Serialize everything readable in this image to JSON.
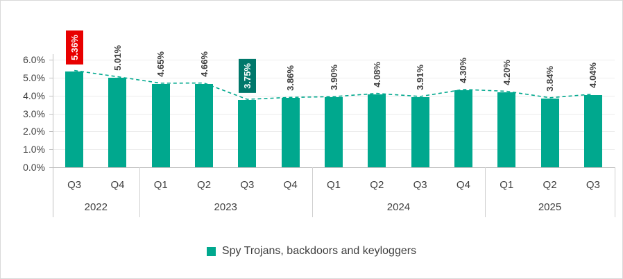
{
  "chart_data": {
    "type": "bar",
    "title": "",
    "legend": "Spy Trojans, backdoors and keyloggers",
    "xlabel": "",
    "ylabel": "",
    "ylim": [
      0,
      6
    ],
    "ytick_step": 1,
    "ytick_labels": [
      "0.0%",
      "1.0%",
      "2.0%",
      "3.0%",
      "4.0%",
      "5.0%",
      "6.0%"
    ],
    "categories": [
      "Q3",
      "Q4",
      "Q1",
      "Q2",
      "Q3",
      "Q4",
      "Q1",
      "Q2",
      "Q3",
      "Q4",
      "Q1",
      "Q2",
      "Q3"
    ],
    "values": [
      5.36,
      5.01,
      4.65,
      4.66,
      3.75,
      3.86,
      3.9,
      4.08,
      3.91,
      4.3,
      4.2,
      3.84,
      4.04
    ],
    "value_labels": [
      "5.36%",
      "5.01%",
      "4.65%",
      "4.66%",
      "3.75%",
      "3.86%",
      "3.90%",
      "4.08%",
      "3.91%",
      "4.30%",
      "4.20%",
      "3.84%",
      "4.04%"
    ],
    "year_groups": [
      {
        "label": "2022",
        "count": 2
      },
      {
        "label": "2023",
        "count": 4
      },
      {
        "label": "2024",
        "count": 4
      },
      {
        "label": "2025",
        "count": 3
      }
    ],
    "highlights": [
      {
        "index": 0,
        "color": "#e80000"
      },
      {
        "index": 4,
        "color": "#00786b"
      }
    ],
    "trend_line": true,
    "grid": true,
    "legend_position": "bottom",
    "colors": {
      "bar": "#00a88e",
      "trend": "#00a88e",
      "value_text": "#3f3f3f",
      "highlight_text": "#ffffff",
      "axis_text": "#404040",
      "axis_line": "#bfbfbf",
      "grid_line": "#ececec",
      "separator": "#d0d0d0",
      "border": "#d9d9d9"
    }
  }
}
